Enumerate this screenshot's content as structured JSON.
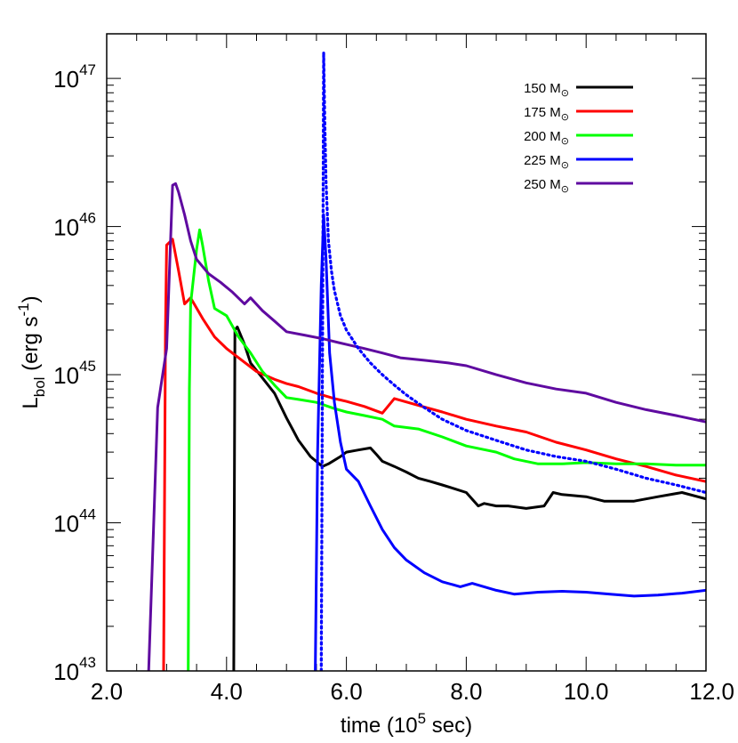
{
  "chart_data": {
    "type": "line",
    "xlabel": {
      "main": "time (10",
      "sup": "5",
      "tail": " sec)"
    },
    "ylabel": {
      "main": "L",
      "sub": "bol",
      "mid": " (erg s",
      "sup": "-1",
      "tail": ")"
    },
    "xlim": [
      2.0,
      12.0
    ],
    "ylim": [
      1e+43,
      2e+47
    ],
    "yscale": "log",
    "grid": false,
    "legend_position": "top-right",
    "xticks": [
      {
        "value": 2.0,
        "label": "2.0"
      },
      {
        "value": 4.0,
        "label": "4.0"
      },
      {
        "value": 6.0,
        "label": "6.0"
      },
      {
        "value": 8.0,
        "label": "8.0"
      },
      {
        "value": 10.0,
        "label": "10.0"
      },
      {
        "value": 12.0,
        "label": "12.0"
      }
    ],
    "yticks": [
      {
        "value": 1e+43,
        "base": "10",
        "exp": "43"
      },
      {
        "value": 1e+44,
        "base": "10",
        "exp": "44"
      },
      {
        "value": 1e+45,
        "base": "10",
        "exp": "45"
      },
      {
        "value": 1e+46,
        "base": "10",
        "exp": "46"
      },
      {
        "value": 1e+47,
        "base": "10",
        "exp": "47"
      }
    ],
    "series": [
      {
        "name": "150 M",
        "name_sub": "⊙",
        "color": "#000000",
        "style": "solid",
        "x": [
          4.12,
          4.14,
          4.18,
          4.3,
          4.4,
          4.6,
          4.8,
          5.0,
          5.1,
          5.2,
          5.4,
          5.6,
          5.7,
          5.9,
          6.0,
          6.2,
          6.4,
          6.5,
          6.6,
          6.8,
          7.0,
          7.2,
          7.4,
          7.6,
          7.8,
          8.0,
          8.2,
          8.3,
          8.5,
          8.7,
          9.0,
          9.3,
          9.45,
          9.6,
          10.0,
          10.3,
          10.8,
          11.2,
          11.6,
          12.0
        ],
        "y": [
          1e+43,
          2e+45,
          2.1e+45,
          1.6e+45,
          1.2e+45,
          9.5e+44,
          7.5e+44,
          5.1e+44,
          4.3e+44,
          3.6e+44,
          2.8e+44,
          2.4e+44,
          2.5e+44,
          2.8e+44,
          3e+44,
          3.1e+44,
          3.2e+44,
          2.9e+44,
          2.6e+44,
          2.4e+44,
          2.2e+44,
          2e+44,
          1.9e+44,
          1.8e+44,
          1.7e+44,
          1.6e+44,
          1.3e+44,
          1.35e+44,
          1.3e+44,
          1.3e+44,
          1.25e+44,
          1.3e+44,
          1.6e+44,
          1.55e+44,
          1.5e+44,
          1.4e+44,
          1.4e+44,
          1.5e+44,
          1.6e+44,
          1.45e+44
        ]
      },
      {
        "name": "175 M",
        "name_sub": "⊙",
        "color": "#ff0000",
        "style": "solid",
        "x": [
          2.95,
          2.98,
          3.0,
          3.1,
          3.2,
          3.3,
          3.4,
          3.6,
          3.8,
          4.0,
          4.2,
          4.5,
          4.8,
          5.0,
          5.2,
          5.5,
          5.8,
          6.0,
          6.3,
          6.6,
          6.8,
          7.2,
          7.6,
          8.0,
          8.5,
          9.0,
          9.5,
          10.0,
          10.5,
          11.0,
          11.5,
          12.0
        ],
        "y": [
          1e+43,
          2e+45,
          7.5e+45,
          8.2e+45,
          5e+45,
          3e+45,
          3.3e+45,
          2.4e+45,
          1.8e+45,
          1.5e+45,
          1.3e+45,
          1.05e+45,
          9.3e+44,
          8.7e+44,
          8.3e+44,
          7.5e+44,
          6.9e+44,
          6.6e+44,
          6.1e+44,
          5.5e+44,
          6.9e+44,
          6.2e+44,
          5.6e+44,
          5e+44,
          4.5e+44,
          4.1e+44,
          3.5e+44,
          3.1e+44,
          2.7e+44,
          2.4e+44,
          2.1e+44,
          1.9e+44
        ]
      },
      {
        "name": "200 M",
        "name_sub": "⊙",
        "color": "#00ff00",
        "style": "solid",
        "x": [
          3.36,
          3.38,
          3.4,
          3.5,
          3.55,
          3.6,
          3.7,
          3.8,
          4.0,
          4.2,
          4.4,
          4.6,
          4.8,
          5.0,
          5.2,
          5.5,
          5.8,
          6.0,
          6.3,
          6.6,
          6.8,
          7.2,
          7.6,
          8.0,
          8.5,
          8.8,
          9.2,
          9.6,
          10.0,
          10.5,
          11.0,
          11.5,
          12.0
        ],
        "y": [
          1e+43,
          8e+44,
          3e+45,
          7e+45,
          9.5e+45,
          7.5e+45,
          4.3e+45,
          2.8e+45,
          2.5e+45,
          1.8e+45,
          1.4e+45,
          1.05e+45,
          8.5e+44,
          7e+44,
          6.8e+44,
          6.5e+44,
          5.9e+44,
          5.6e+44,
          5.3e+44,
          5e+44,
          4.5e+44,
          4.3e+44,
          3.8e+44,
          3.3e+44,
          3e+44,
          2.7e+44,
          2.5e+44,
          2.5e+44,
          2.55e+44,
          2.5e+44,
          2.5e+44,
          2.45e+44,
          2.45e+44
        ]
      },
      {
        "name": "225 M",
        "name_sub": "⊙",
        "color": "#0000ff",
        "style": "solid",
        "x": [
          5.48,
          5.52,
          5.58,
          5.62,
          5.66,
          5.72,
          5.8,
          5.9,
          6.0,
          6.2,
          6.4,
          6.6,
          6.8,
          7.0,
          7.3,
          7.6,
          7.9,
          8.1,
          8.5,
          8.8,
          9.2,
          9.6,
          10.0,
          10.4,
          10.8,
          11.2,
          11.6,
          12.0
        ],
        "y": [
          1e+43,
          3e+44,
          4e+45,
          1.2e+46,
          6e+45,
          1.4e+45,
          6.5e+44,
          3.5e+44,
          2.3e+44,
          1.9e+44,
          1.3e+44,
          9e+43,
          6.8e+43,
          5.6e+43,
          4.6e+43,
          4e+43,
          3.7e+43,
          3.9e+43,
          3.5e+43,
          3.3e+43,
          3.4e+43,
          3.45e+43,
          3.4e+43,
          3.3e+43,
          3.2e+43,
          3.25e+43,
          3.35e+43,
          3.5e+43
        ]
      },
      {
        "name": "250 M",
        "name_sub": "⊙",
        "color": "#5f0aa0",
        "style": "solid",
        "x": [
          2.7,
          2.85,
          3.0,
          3.1,
          3.15,
          3.2,
          3.3,
          3.4,
          3.5,
          3.7,
          3.9,
          4.1,
          4.3,
          4.4,
          4.6,
          4.8,
          5.0,
          5.3,
          5.6,
          6.0,
          6.3,
          6.6,
          6.9,
          7.3,
          7.7,
          8.0,
          8.5,
          9.0,
          9.5,
          10.0,
          10.5,
          11.0,
          11.5,
          12.0
        ],
        "y": [
          1e+43,
          6e+44,
          1.5e+45,
          1.9e+46,
          1.95e+46,
          1.7e+46,
          1.2e+46,
          8e+45,
          6e+45,
          4.8e+45,
          4.2e+45,
          3.6e+45,
          3e+45,
          3.3e+45,
          2.7e+45,
          2.3e+45,
          1.95e+45,
          1.85e+45,
          1.75e+45,
          1.6e+45,
          1.5e+45,
          1.4e+45,
          1.3e+45,
          1.25e+45,
          1.2e+45,
          1.15e+45,
          1e+45,
          8.8e+44,
          8e+44,
          7.5e+44,
          6.5e+44,
          5.8e+44,
          5.3e+44,
          4.8e+44
        ]
      },
      {
        "name": "",
        "color": "#0000ff",
        "style": "dotted",
        "x": [
          5.58,
          5.59,
          5.6,
          5.61,
          5.62,
          5.64,
          5.66,
          5.7,
          5.75,
          5.8,
          5.9,
          6.0,
          6.2,
          6.4,
          6.6,
          6.8,
          7.0,
          7.3,
          7.6,
          8.0,
          8.5,
          9.0,
          9.5,
          10.0,
          10.5,
          11.0,
          11.5,
          12.0
        ],
        "y": [
          1e+43,
          1e+44,
          1e+45,
          1e+46,
          1.5e+47,
          5e+46,
          2e+46,
          8e+45,
          5e+45,
          3.7e+45,
          2.5e+45,
          2e+45,
          1.5e+45,
          1.2e+45,
          1e+45,
          8.5e+44,
          7.3e+44,
          6e+44,
          5e+44,
          4.2e+44,
          3.6e+44,
          3.1e+44,
          2.8e+44,
          2.6e+44,
          2.3e+44,
          2e+44,
          1.8e+44,
          1.6e+44
        ]
      }
    ]
  }
}
